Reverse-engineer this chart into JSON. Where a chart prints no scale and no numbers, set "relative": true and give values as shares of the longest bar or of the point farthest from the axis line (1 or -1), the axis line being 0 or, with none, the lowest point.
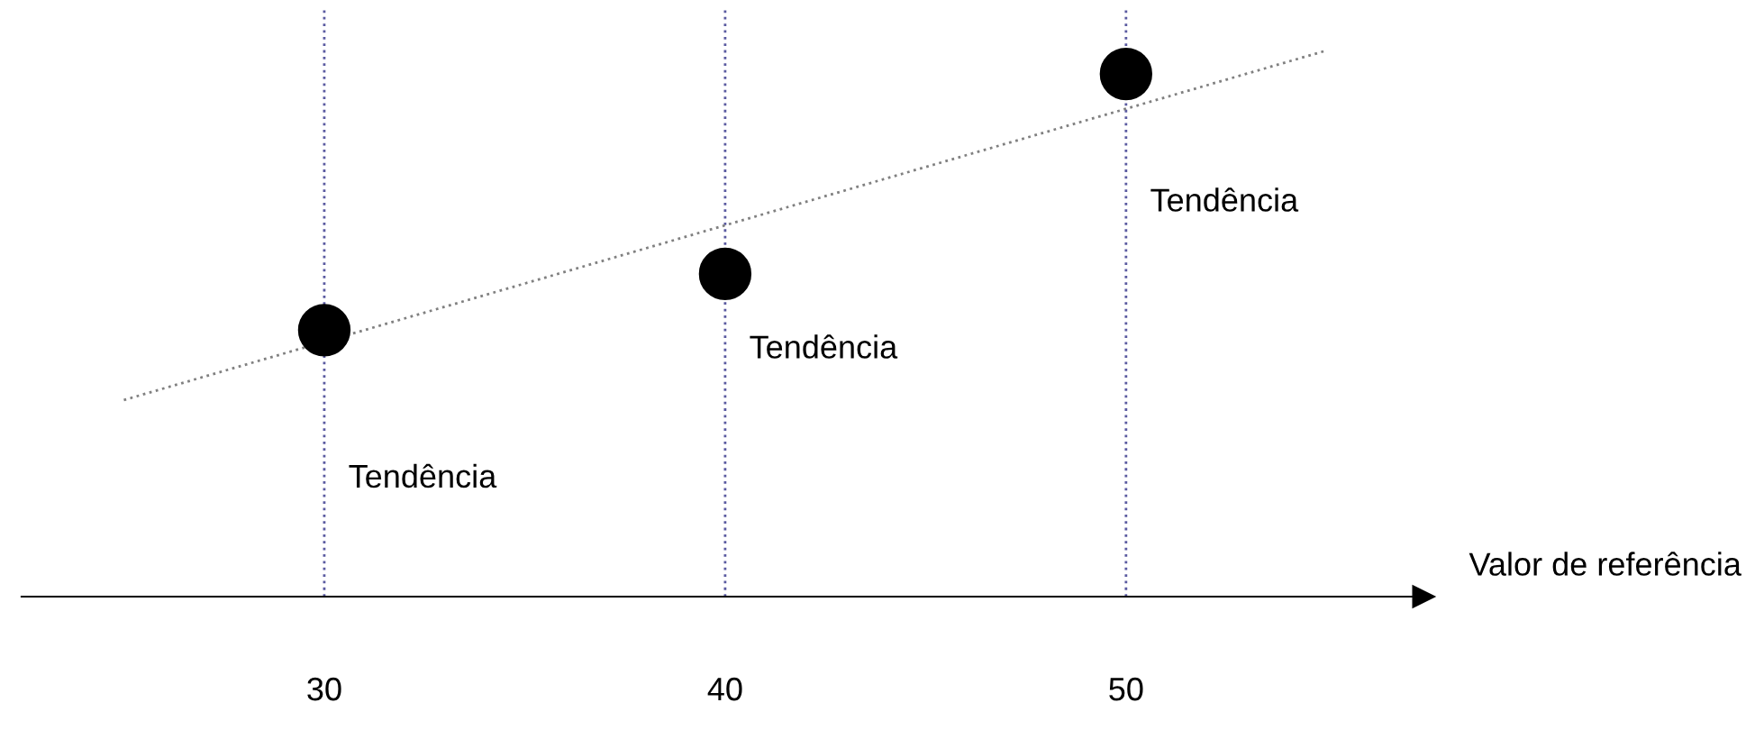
{
  "chart_data": {
    "type": "scatter",
    "relative": true,
    "x": [
      30,
      40,
      50
    ],
    "xlim": [
      22.45,
      57.42
    ],
    "xticks": [
      30,
      40,
      50
    ],
    "xlabel": "Valor de referência",
    "tick_labels": "x",
    "series": [
      {
        "color": "#000000",
        "marker": "circle",
        "values": [
          0.488,
          0.591,
          0.957
        ]
      },
      {
        "type": "line",
        "x": [
          25,
          55
        ],
        "color": "#808080",
        "line_style": "dotted",
        "values": [
          0.36,
          1.0
        ]
      }
    ],
    "ref_lines": [
      {
        "axis": "x",
        "value": 30,
        "color": "#5a5aa0",
        "line_style": "dotted",
        "label": "Tendência"
      },
      {
        "axis": "x",
        "value": 40,
        "color": "#5a5aa0",
        "line_style": "dotted",
        "label": "Tendência"
      },
      {
        "axis": "x",
        "value": 50,
        "color": "#5a5aa0",
        "line_style": "dotted",
        "label": "Tendência"
      }
    ]
  }
}
